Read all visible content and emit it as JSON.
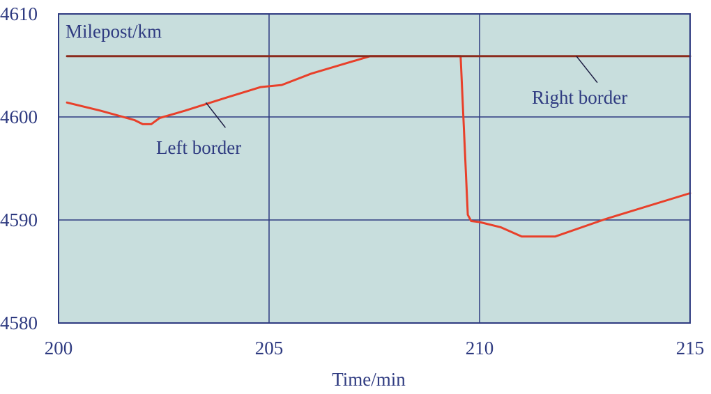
{
  "chart_data": {
    "type": "line",
    "title": "",
    "ylabel": "Milepost/km",
    "xlabel": "Time/min",
    "xlim": [
      200,
      215
    ],
    "ylim": [
      4580,
      4610
    ],
    "xticks": [
      200,
      205,
      210,
      215
    ],
    "yticks": [
      4580,
      4590,
      4600,
      4610
    ],
    "grid": true,
    "colors": {
      "plot_background": "#c8dedd",
      "grid": "#2e3a80",
      "axis_text": "#2e3a80",
      "left_border": "#e8402a",
      "right_border": "#8b2a1c"
    },
    "series": [
      {
        "id": "left_border",
        "x": [
          200.2,
          201.0,
          201.8,
          202.0,
          202.2,
          202.4,
          203.0,
          204.0,
          204.8,
          205.3,
          206.0,
          207.4,
          209.55,
          209.72,
          209.8,
          210.0,
          210.5,
          211.0,
          211.8,
          213.0,
          215.0
        ],
        "y": [
          4601.4,
          4600.6,
          4599.7,
          4599.3,
          4599.3,
          4599.9,
          4600.6,
          4601.9,
          4602.9,
          4603.1,
          4604.2,
          4605.9,
          4605.9,
          4590.5,
          4589.9,
          4589.8,
          4589.3,
          4588.4,
          4588.4,
          4590.1,
          4592.6
        ]
      },
      {
        "id": "right_border",
        "x": [
          200.2,
          215.0
        ],
        "y": [
          4605.9,
          4605.9
        ]
      }
    ],
    "annotations": [
      {
        "text": "Left border",
        "points_to": [
          203.5,
          4601.4
        ]
      },
      {
        "text": "Right border",
        "points_to": [
          212.3,
          4605.9
        ]
      }
    ]
  }
}
